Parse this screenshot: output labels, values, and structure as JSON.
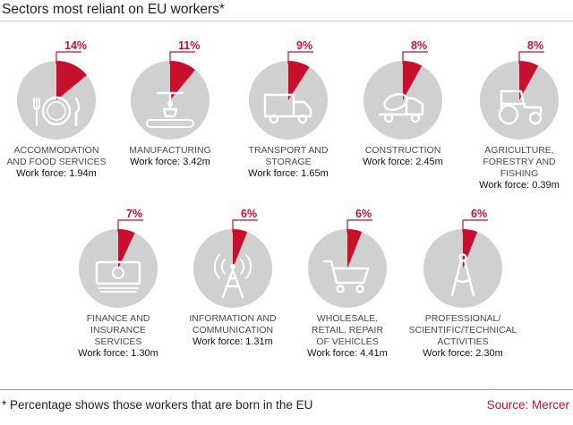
{
  "title": "Sectors most reliant on EU workers*",
  "footnote": "* Percentage shows those workers that are born in the EU",
  "source": "Source: Mercer",
  "colors": {
    "accent": "#c8102e",
    "circle": "#d0d0d0",
    "icon": "#ffffff"
  },
  "chart_data": {
    "type": "pie",
    "unit": "%",
    "sectors": [
      {
        "name": "ACCOMMODATION AND FOOD SERVICES",
        "name_lines": [
          "ACCOMMODATION",
          "AND FOOD SERVICES"
        ],
        "percent": 14,
        "percent_label": "14%",
        "workforce_label": "Work force: 1.94m",
        "icon": "plate-cutlery-icon"
      },
      {
        "name": "MANUFACTURING",
        "name_lines": [
          "MANUFACTURING"
        ],
        "percent": 11,
        "percent_label": "11%",
        "workforce_label": "Work force: 3.42m",
        "icon": "robot-arm-icon"
      },
      {
        "name": "TRANSPORT AND STORAGE",
        "name_lines": [
          "TRANSPORT AND",
          "STORAGE"
        ],
        "percent": 9,
        "percent_label": "9%",
        "workforce_label": "Work force: 1.65m",
        "icon": "truck-icon"
      },
      {
        "name": "CONSTRUCTION",
        "name_lines": [
          "CONSTRUCTION"
        ],
        "percent": 8,
        "percent_label": "8%",
        "workforce_label": "Work force: 2.45m",
        "icon": "cement-mixer-icon"
      },
      {
        "name": "AGRICULTURE, FORESTRY AND FISHING",
        "name_lines": [
          "AGRICULTURE,",
          "FORESTRY AND",
          "FISHING"
        ],
        "percent": 8,
        "percent_label": "8%",
        "workforce_label": "Work force: 0.39m",
        "icon": "tractor-icon"
      },
      {
        "name": "FINANCE AND INSURANCE SERVICES",
        "name_lines": [
          "FINANCE AND",
          "INSURANCE",
          "SERVICES"
        ],
        "percent": 7,
        "percent_label": "7%",
        "workforce_label": "Work force: 1.30m",
        "icon": "banknote-icon"
      },
      {
        "name": "INFORMATION AND COMMUNICATION",
        "name_lines": [
          "INFORMATION AND",
          "COMMUNICATION"
        ],
        "percent": 6,
        "percent_label": "6%",
        "workforce_label": "Work force: 1.31m",
        "icon": "radio-tower-icon"
      },
      {
        "name": "WHOLESALE, RETAIL, REPAIR OF VEHICLES",
        "name_lines": [
          "WHOLESALE,",
          "RETAIL, REPAIR",
          "OF VEHICLES"
        ],
        "percent": 6,
        "percent_label": "6%",
        "workforce_label": "Work force: 4.41m",
        "icon": "shopping-cart-icon"
      },
      {
        "name": "PROFESSIONAL/ SCIENTIFIC/TECHNICAL ACTIVITIES",
        "name_lines": [
          "PROFESSIONAL/",
          "SCIENTIFIC/TECHNICAL",
          "ACTIVITIES"
        ],
        "percent": 6,
        "percent_label": "6%",
        "workforce_label": "Work force: 2.30m",
        "icon": "compass-icon"
      }
    ]
  }
}
